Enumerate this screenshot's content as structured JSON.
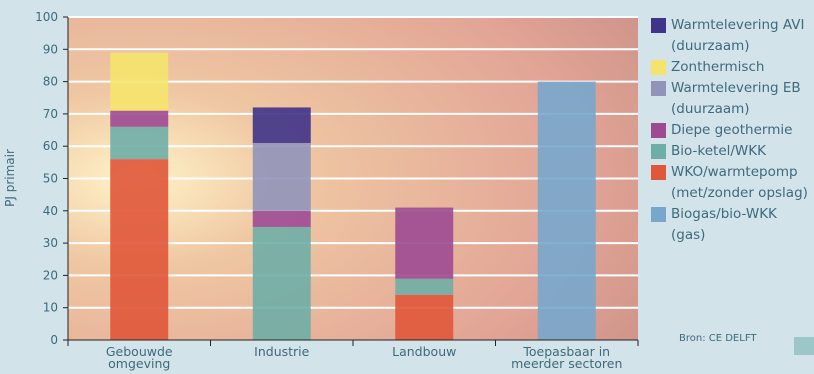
{
  "chart_data": {
    "type": "bar",
    "stacked": true,
    "ylabel": "PJ primair",
    "ylim": [
      0,
      100
    ],
    "yticks": [
      "0",
      "10",
      "20",
      "30",
      "40",
      "50",
      "60",
      "70",
      "80",
      "90",
      "100"
    ],
    "grid": true,
    "legend_position": "right",
    "categories": [
      "Gebouwde\nomgeving",
      "Industrie",
      "Landbouw",
      "Toepasbaar in\nmeerder sectoren"
    ],
    "series": [
      {
        "name": "WKO/warmtepomp (met/zonder opslag)",
        "color": "#e0573a",
        "values": [
          56,
          0,
          14,
          0
        ]
      },
      {
        "name": "Bio-ketel/WKK",
        "color": "#6faea6",
        "values": [
          10,
          35,
          5,
          0
        ]
      },
      {
        "name": "Diepe geothermie",
        "color": "#9d4a93",
        "values": [
          5,
          5,
          22,
          0
        ]
      },
      {
        "name": "Warmtelevering EB (duurzaam)",
        "color": "#9193ba",
        "values": [
          0,
          21,
          0,
          0
        ]
      },
      {
        "name": "Zonthermisch",
        "color": "#f4e46d",
        "values": [
          18,
          0,
          0,
          0
        ]
      },
      {
        "name": "Warmtelevering AVI (duurzaam)",
        "color": "#3f338a",
        "values": [
          0,
          11,
          0,
          0
        ]
      },
      {
        "name": "Biogas/bio-WKK (gas)",
        "color": "#78a7cc",
        "values": [
          0,
          0,
          0,
          80
        ]
      }
    ]
  },
  "legend": [
    {
      "label": "Warmtelevering AVI\n(duurzaam)",
      "color": "#3f338a"
    },
    {
      "label": "Zonthermisch",
      "color": "#f4e46d"
    },
    {
      "label": "Warmtelevering EB\n(duurzaam)",
      "color": "#9193ba"
    },
    {
      "label": "Diepe geothermie",
      "color": "#9d4a93"
    },
    {
      "label": "Bio-ketel/WKK",
      "color": "#6faea6"
    },
    {
      "label": "WKO/warmtepomp\n(met/zonder opslag)",
      "color": "#e0573a"
    },
    {
      "label": "Biogas/bio-WKK (gas)",
      "color": "#78a7cc"
    }
  ],
  "source": "Bron: CE DELFT",
  "colors": {
    "background": "#d3e3ea",
    "text": "#3d6a7c",
    "grid": "#ffffff"
  }
}
